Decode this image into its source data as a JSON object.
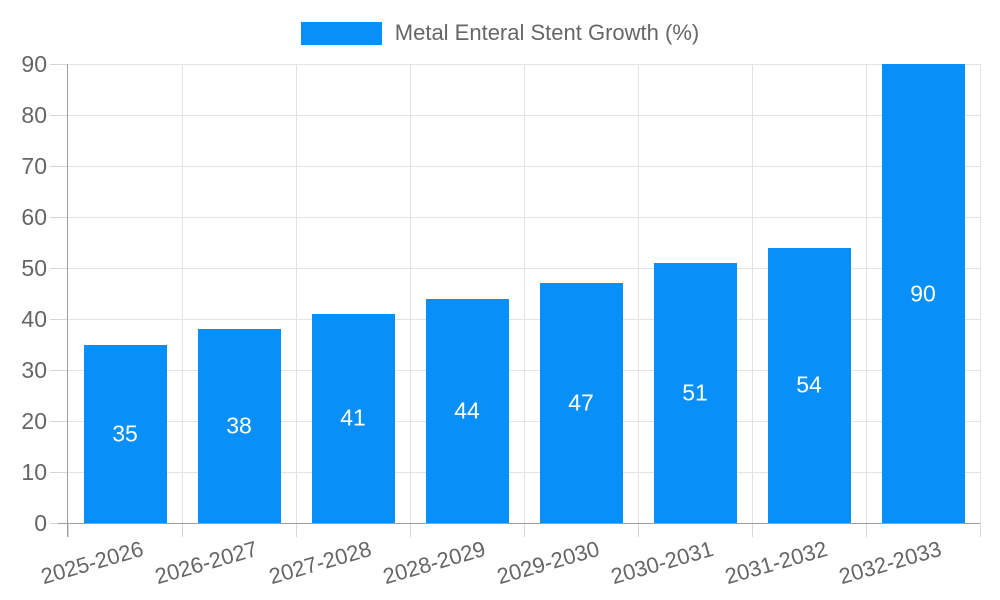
{
  "chart_data": {
    "type": "bar",
    "title": "Metal Enteral Stent Growth (%)",
    "categories": [
      "2025-2026",
      "2026-2027",
      "2027-2028",
      "2028-2029",
      "2029-2030",
      "2030-2031",
      "2031-2032",
      "2032-2033"
    ],
    "values": [
      35,
      38,
      41,
      44,
      47,
      51,
      54,
      90
    ],
    "xlabel": "",
    "ylabel": "",
    "ylim": [
      0,
      90
    ],
    "yticks": [
      0,
      10,
      20,
      30,
      40,
      50,
      60,
      70,
      80,
      90
    ],
    "grid": "on",
    "legend_position": "top-center",
    "value_labels": "inside-center",
    "bar_color": "#0990F8",
    "colors": {
      "grid": "#e3e3e3",
      "axis": "#9e9e9e",
      "tick": "#d6d6d6",
      "axis_text": "#666666",
      "value_label_text": "#ffffff",
      "background": "#ffffff"
    }
  }
}
